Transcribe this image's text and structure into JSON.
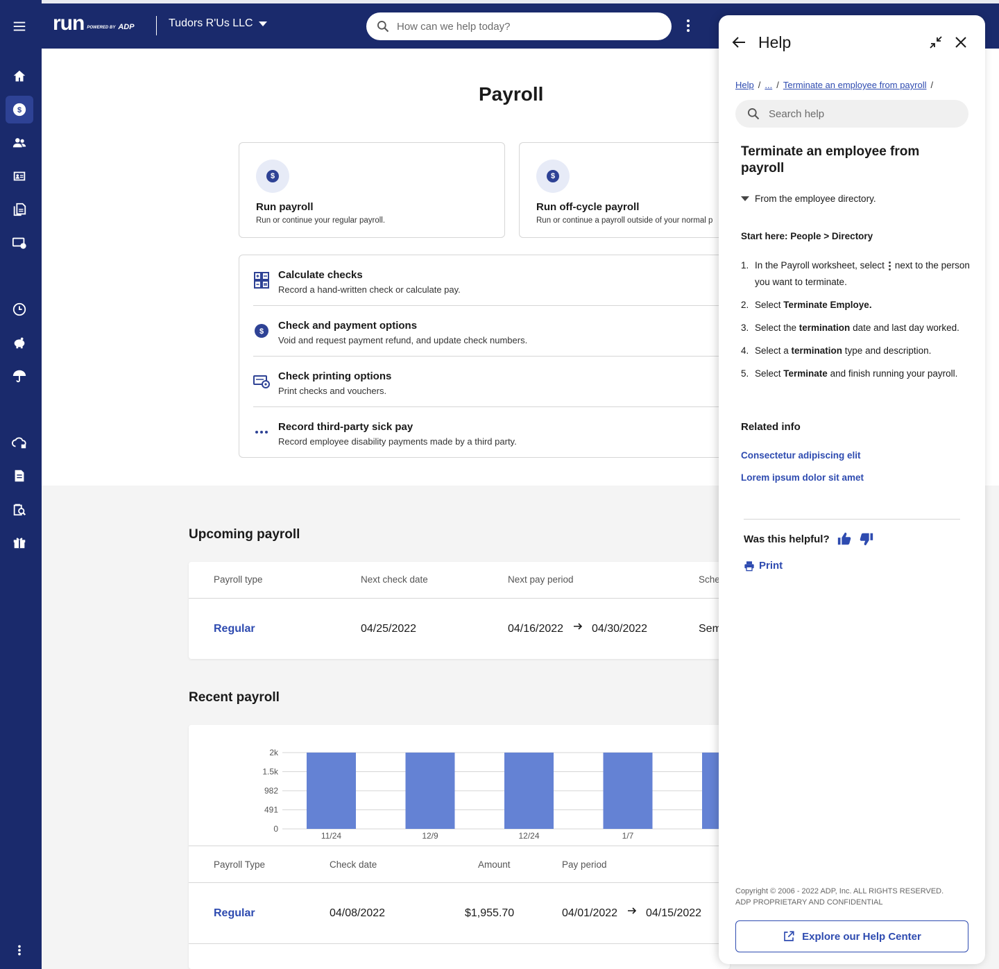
{
  "header": {
    "logo_text": "run",
    "logo_powered_by": "POWERED BY",
    "logo_adp": "ADP",
    "company": "Tudors R'Us LLC",
    "search_placeholder": "How can we help today?"
  },
  "page": {
    "title": "Payroll",
    "cards": [
      {
        "title": "Run payroll",
        "desc": "Run or continue your regular payroll."
      },
      {
        "title": "Run off-cycle payroll",
        "desc": "Run or continue a payroll outside of your normal p"
      }
    ],
    "options": [
      {
        "title": "Calculate checks",
        "desc": "Record a hand-written check or calculate pay.",
        "icon": "calculator-icon"
      },
      {
        "title": "Check and payment options",
        "desc": "Void and request payment refund, and update check numbers.",
        "icon": "dollar-coin-icon"
      },
      {
        "title": "Check printing options",
        "desc": "Print checks and vouchers.",
        "icon": "check-print-icon"
      },
      {
        "title": "Record third-party sick pay",
        "desc": "Record employee disability payments made by a third party.",
        "icon": "more-dots-icon"
      }
    ]
  },
  "upcoming": {
    "title": "Upcoming payroll",
    "headers": [
      "Payroll type",
      "Next check date",
      "Next pay period",
      "Sche"
    ],
    "row": {
      "type": "Regular",
      "check_date": "04/25/2022",
      "period_start": "04/16/2022",
      "period_end": "04/30/2022",
      "schedule": "Sem"
    }
  },
  "recent": {
    "title": "Recent payroll",
    "headers": [
      "Payroll Type",
      "Check date",
      "Amount",
      "Pay period"
    ],
    "row": {
      "type": "Regular",
      "check_date": "04/08/2022",
      "amount": "$1,955.70",
      "period_start": "04/01/2022",
      "period_end": "04/15/2022"
    }
  },
  "chart_data": {
    "type": "bar",
    "categories": [
      "11/24",
      "12/9",
      "12/24",
      "1/7",
      ""
    ],
    "values": [
      2000,
      2000,
      1985,
      2000,
      2000
    ],
    "y_ticks": [
      "2k",
      "1.5k",
      "982",
      "491",
      "0"
    ],
    "y_tick_values": [
      1964,
      1473,
      982,
      491,
      0
    ],
    "ylim": [
      0,
      1964
    ],
    "bar_color": "#6482d4",
    "grid": true
  },
  "help": {
    "title": "Help",
    "breadcrumbs": [
      "Help",
      "...",
      "Terminate an employee from payroll"
    ],
    "search_placeholder": "Search help",
    "article_title": "Terminate an employee from payroll",
    "toggle": "From the employee directory.",
    "start_here": "Start here: People > Directory",
    "steps": [
      {
        "n": "1.",
        "pre": "In the Payroll worksheet, select",
        "post": "next to the person you want to terminate."
      },
      {
        "n": "2.",
        "pre": "Select ",
        "bold": "Terminate Employe.",
        "post": ""
      },
      {
        "n": "3.",
        "pre": "Select the ",
        "bold": "termination",
        "post": " date and last day worked."
      },
      {
        "n": "4.",
        "pre": "Select a ",
        "bold": "termination",
        "post": " type and description."
      },
      {
        "n": "5.",
        "pre": "Select ",
        "bold": "Terminate",
        "post": " and finish running your payroll."
      }
    ],
    "related_title": "Related info",
    "related_links": [
      "Consectetur adipiscing elit",
      "Lorem ipsum dolor sit amet"
    ],
    "helpful": "Was this helpful?",
    "print": "Print",
    "copyright_1": "Copyright © 2006 - 2022 ADP, Inc. ALL RIGHTS RESERVED.",
    "copyright_2": "ADP PROPRIETARY AND CONFIDENTIAL",
    "explore": "Explore our Help Center"
  },
  "colors": {
    "navy": "#1a2a6c",
    "accent": "#2e4bb0",
    "bar": "#6482d4"
  }
}
